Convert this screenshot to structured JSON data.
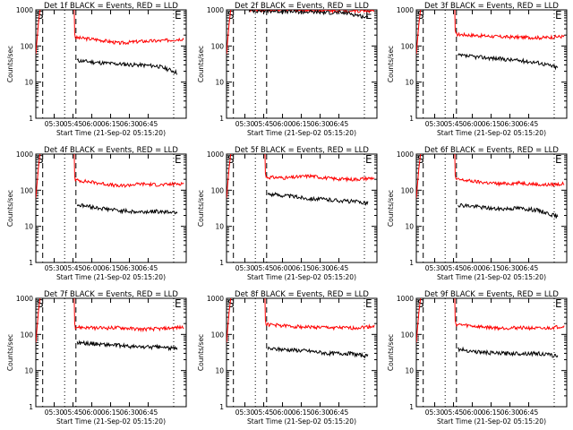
{
  "chart_data": [
    {
      "type": "line",
      "title": "Det 1f BLACK = Events, RED = LLD",
      "xlabel": "Start Time (21-Sep-02 05:15:20)",
      "ylabel": "Counts/sec",
      "ylim": [
        1,
        1000
      ],
      "yscale": "log",
      "yticks": [
        "1",
        "10",
        "100",
        "1000"
      ],
      "xticks": [
        "05:30",
        "05:45",
        "06:00",
        "06:15",
        "06:30",
        "06:45"
      ],
      "markers": [
        "S",
        "E"
      ],
      "red_level": [
        170,
        150,
        120,
        135,
        140,
        160
      ],
      "black_level": [
        40,
        35,
        32,
        30,
        28,
        18
      ],
      "black_end_minutes": 113
    },
    {
      "type": "line",
      "title": "Det 2f BLACK = Events, RED = LLD",
      "xlabel": "Start Time (21-Sep-02 05:15:20)",
      "ylabel": "Counts/sec",
      "ylim": [
        1,
        1000
      ],
      "yscale": "log",
      "yticks": [
        "1",
        "10",
        "100",
        "1000"
      ],
      "xticks": [
        "05:30",
        "05:45",
        "06:00",
        "06:15",
        "06:30",
        "06:45"
      ],
      "markers": [
        "S",
        "E"
      ],
      "red_level": [
        1000,
        980,
        980,
        960,
        950,
        940
      ],
      "black_level": [
        950,
        900,
        880,
        850,
        820,
        600
      ],
      "black_end_minutes": 113
    },
    {
      "type": "line",
      "title": "Det 3f BLACK = Events, RED = LLD",
      "xlabel": "Start Time (21-Sep-02 05:15:20)",
      "ylabel": "Counts/sec",
      "ylim": [
        1,
        1000
      ],
      "yscale": "log",
      "yticks": [
        "1",
        "10",
        "100",
        "1000"
      ],
      "xticks": [
        "05:30",
        "05:45",
        "06:00",
        "06:15",
        "06:30",
        "06:45"
      ],
      "markers": [
        "S",
        "E"
      ],
      "red_level": [
        210,
        195,
        180,
        175,
        170,
        185
      ],
      "black_level": [
        55,
        50,
        45,
        40,
        35,
        25
      ],
      "black_end_minutes": 113
    },
    {
      "type": "line",
      "title": "Det 4f BLACK = Events, RED = LLD",
      "xlabel": "Start Time (21-Sep-02 05:15:20)",
      "ylabel": "Counts/sec",
      "ylim": [
        1,
        1000
      ],
      "yscale": "log",
      "yticks": [
        "1",
        "10",
        "100",
        "1000"
      ],
      "xticks": [
        "05:30",
        "05:45",
        "06:00",
        "06:15",
        "06:30",
        "06:45"
      ],
      "markers": [
        "S",
        "E"
      ],
      "red_level": [
        190,
        160,
        130,
        150,
        140,
        155
      ],
      "black_level": [
        40,
        33,
        28,
        25,
        26,
        25
      ],
      "black_end_minutes": 113
    },
    {
      "type": "line",
      "title": "Det 5f BLACK = Events, RED = LLD",
      "xlabel": "Start Time (21-Sep-02 05:15:20)",
      "ylabel": "Counts/sec",
      "ylim": [
        1,
        1000
      ],
      "yscale": "log",
      "yticks": [
        "1",
        "10",
        "100",
        "1000"
      ],
      "xticks": [
        "05:30",
        "05:45",
        "06:00",
        "06:15",
        "06:30",
        "06:45"
      ],
      "markers": [
        "S",
        "E"
      ],
      "red_level": [
        230,
        220,
        250,
        210,
        200,
        220
      ],
      "black_level": [
        80,
        70,
        60,
        55,
        50,
        45
      ],
      "black_end_minutes": 113
    },
    {
      "type": "line",
      "title": "Det 6f BLACK = Events, RED = LLD",
      "xlabel": "Start Time (21-Sep-02 05:15:20)",
      "ylabel": "Counts/sec",
      "ylim": [
        1,
        1000
      ],
      "yscale": "log",
      "yticks": [
        "1",
        "10",
        "100",
        "1000"
      ],
      "xticks": [
        "05:30",
        "05:45",
        "06:00",
        "06:15",
        "06:30",
        "06:45"
      ],
      "markers": [
        "S",
        "E"
      ],
      "red_level": [
        200,
        170,
        150,
        160,
        140,
        150
      ],
      "black_level": [
        40,
        35,
        30,
        32,
        28,
        18
      ],
      "black_end_minutes": 113
    },
    {
      "type": "line",
      "title": "Det 7f BLACK = Events, RED = LLD",
      "xlabel": "Start Time (21-Sep-02 05:15:20)",
      "ylabel": "Counts/sec",
      "ylim": [
        1,
        1000
      ],
      "yscale": "log",
      "yticks": [
        "1",
        "10",
        "100",
        "1000"
      ],
      "xticks": [
        "05:30",
        "05:45",
        "06:00",
        "06:15",
        "06:30",
        "06:45"
      ],
      "markers": [
        "S",
        "E"
      ],
      "red_level": [
        160,
        150,
        155,
        140,
        145,
        160
      ],
      "black_level": [
        60,
        55,
        50,
        45,
        45,
        40
      ],
      "black_end_minutes": 113
    },
    {
      "type": "line",
      "title": "Det 8f BLACK = Events, RED = LLD",
      "xlabel": "Start Time (21-Sep-02 05:15:20)",
      "ylabel": "Counts/sec",
      "ylim": [
        1,
        1000
      ],
      "yscale": "log",
      "yticks": [
        "1",
        "10",
        "100",
        "1000"
      ],
      "xticks": [
        "05:30",
        "05:45",
        "06:00",
        "06:15",
        "06:30",
        "06:45"
      ],
      "markers": [
        "S",
        "E"
      ],
      "red_level": [
        190,
        170,
        160,
        155,
        150,
        170
      ],
      "black_level": [
        40,
        38,
        35,
        30,
        30,
        25
      ],
      "black_end_minutes": 113
    },
    {
      "type": "line",
      "title": "Det 9f BLACK = Events, RED = LLD",
      "xlabel": "Start Time (21-Sep-02 05:15:20)",
      "ylabel": "Counts/sec",
      "ylim": [
        1,
        1000
      ],
      "yscale": "log",
      "yticks": [
        "1",
        "10",
        "100",
        "1000"
      ],
      "xticks": [
        "05:30",
        "05:45",
        "06:00",
        "06:15",
        "06:30",
        "06:45"
      ],
      "markers": [
        "S",
        "E"
      ],
      "red_level": [
        190,
        165,
        150,
        155,
        145,
        170
      ],
      "black_level": [
        40,
        33,
        30,
        30,
        30,
        25
      ],
      "black_end_minutes": 113
    }
  ],
  "colors": {
    "lld": "#ff0000",
    "events": "#000000"
  }
}
